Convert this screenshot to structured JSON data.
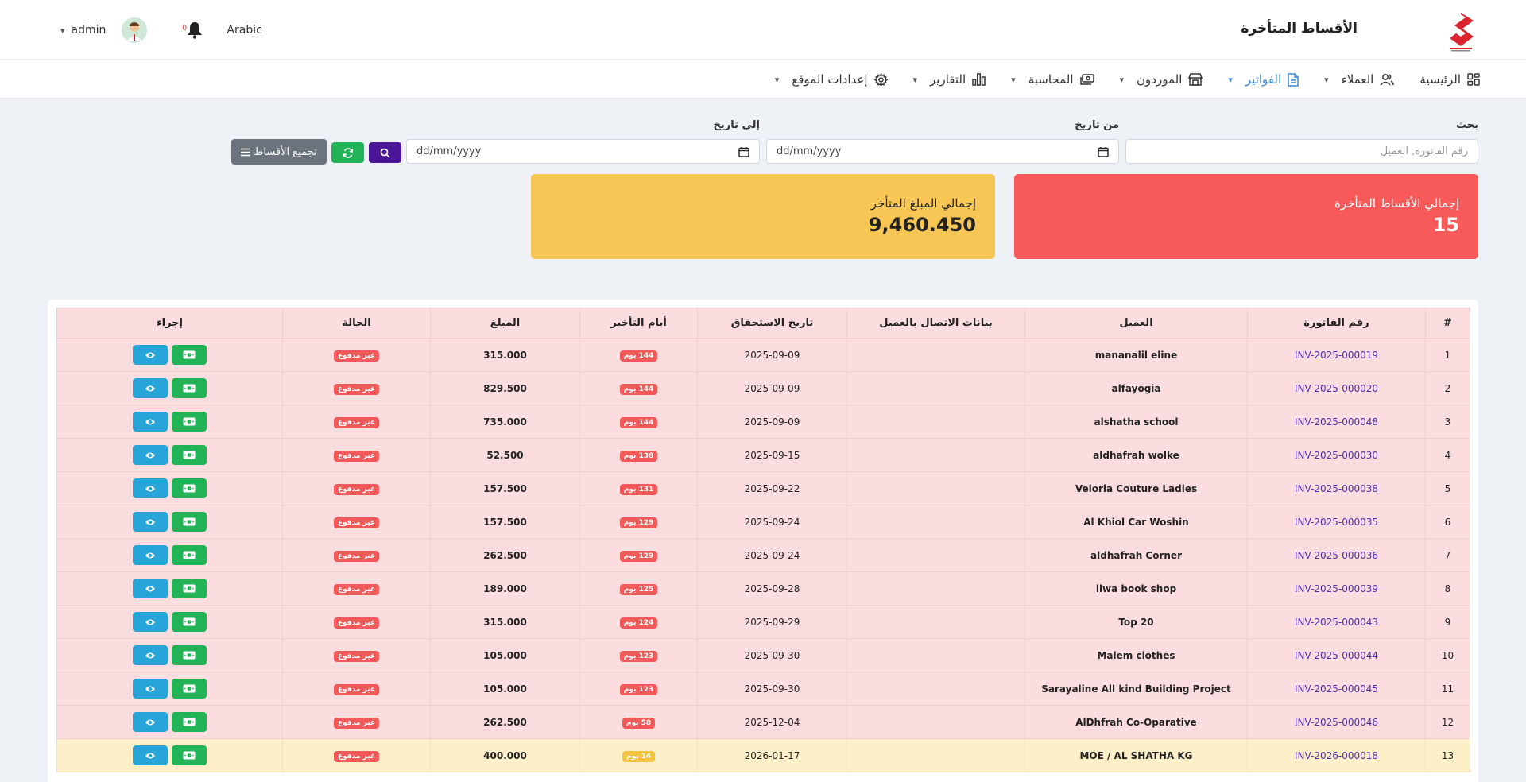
{
  "header": {
    "title": "الأقساط المتأخرة",
    "user": "admin",
    "language": "Arabic",
    "notifications": "0"
  },
  "nav": [
    {
      "label": "الرئيسية",
      "icon": "dashboard-icon",
      "dropdown": false,
      "active": false
    },
    {
      "label": "العملاء",
      "icon": "users-icon",
      "dropdown": true,
      "active": false
    },
    {
      "label": "الفواتير",
      "icon": "document-icon",
      "dropdown": true,
      "active": true
    },
    {
      "label": "الموردون",
      "icon": "store-icon",
      "dropdown": true,
      "active": false
    },
    {
      "label": "المحاسبة",
      "icon": "cash-icon",
      "dropdown": true,
      "active": false
    },
    {
      "label": "التقارير",
      "icon": "bar-chart-icon",
      "dropdown": true,
      "active": false
    },
    {
      "label": "إعدادات الموقع",
      "icon": "gear-icon",
      "dropdown": true,
      "active": false
    }
  ],
  "filters": {
    "search_label": "بحث",
    "search_placeholder": "رقم الفاتورة, العميل",
    "from_label": "من تاريخ",
    "to_label": "إلى تاريخ",
    "date_placeholder": "dd/mm/yyyy",
    "group_button": "تجميع الأقساط"
  },
  "cards": {
    "overdue_count_label": "إجمالي الأقساط المتأخرة",
    "overdue_count_value": "15",
    "overdue_amount_label": "إجمالي المبلغ المتأخر",
    "overdue_amount_value": "9,460.450"
  },
  "table": {
    "headers": [
      "#",
      "رقم الفاتورة",
      "العميل",
      "بيانات الاتصال بالعميل",
      "تاريخ الاستحقاق",
      "أيام التأخير",
      "المبلغ",
      "الحالة",
      "إجراء"
    ],
    "rows": [
      {
        "n": "1",
        "invoice": "INV-2025-000019",
        "client": "mananalil eline",
        "contact": "",
        "due": "2025-09-09",
        "days": "144 يوم",
        "amount": "315.000",
        "status": "غير مدفوع",
        "tone": "red"
      },
      {
        "n": "2",
        "invoice": "INV-2025-000020",
        "client": "alfayogia",
        "contact": "",
        "due": "2025-09-09",
        "days": "144 يوم",
        "amount": "829.500",
        "status": "غير مدفوع",
        "tone": "red"
      },
      {
        "n": "3",
        "invoice": "INV-2025-000048",
        "client": "alshatha school",
        "contact": "",
        "due": "2025-09-09",
        "days": "144 يوم",
        "amount": "735.000",
        "status": "غير مدفوع",
        "tone": "red"
      },
      {
        "n": "4",
        "invoice": "INV-2025-000030",
        "client": "aldhafrah wolke",
        "contact": "",
        "due": "2025-09-15",
        "days": "138 يوم",
        "amount": "52.500",
        "status": "غير مدفوع",
        "tone": "red"
      },
      {
        "n": "5",
        "invoice": "INV-2025-000038",
        "client": "Veloria Couture Ladies",
        "contact": "",
        "due": "2025-09-22",
        "days": "131 يوم",
        "amount": "157.500",
        "status": "غير مدفوع",
        "tone": "red"
      },
      {
        "n": "6",
        "invoice": "INV-2025-000035",
        "client": "Al Khiol Car Woshin",
        "contact": "",
        "due": "2025-09-24",
        "days": "129 يوم",
        "amount": "157.500",
        "status": "غير مدفوع",
        "tone": "red"
      },
      {
        "n": "7",
        "invoice": "INV-2025-000036",
        "client": "aldhafrah Corner",
        "contact": "",
        "due": "2025-09-24",
        "days": "129 يوم",
        "amount": "262.500",
        "status": "غير مدفوع",
        "tone": "red"
      },
      {
        "n": "8",
        "invoice": "INV-2025-000039",
        "client": "liwa book shop",
        "contact": "",
        "due": "2025-09-28",
        "days": "125 يوم",
        "amount": "189.000",
        "status": "غير مدفوع",
        "tone": "red"
      },
      {
        "n": "9",
        "invoice": "INV-2025-000043",
        "client": "Top 20",
        "contact": "",
        "due": "2025-09-29",
        "days": "124 يوم",
        "amount": "315.000",
        "status": "غير مدفوع",
        "tone": "red"
      },
      {
        "n": "10",
        "invoice": "INV-2025-000044",
        "client": "Malem clothes",
        "contact": "",
        "due": "2025-09-30",
        "days": "123 يوم",
        "amount": "105.000",
        "status": "غير مدفوع",
        "tone": "red"
      },
      {
        "n": "11",
        "invoice": "INV-2025-000045",
        "client": "Sarayaline All kind Building Project",
        "contact": "",
        "due": "2025-09-30",
        "days": "123 يوم",
        "amount": "105.000",
        "status": "غير مدفوع",
        "tone": "red"
      },
      {
        "n": "12",
        "invoice": "INV-2025-000046",
        "client": "AlDhfrah Co-Oparative",
        "contact": "",
        "due": "2025-12-04",
        "days": "58 يوم",
        "amount": "262.500",
        "status": "غير مدفوع",
        "tone": "red"
      },
      {
        "n": "13",
        "invoice": "INV-2026-000018",
        "client": "MOE / AL SHATHA KG",
        "contact": "",
        "due": "2026-01-17",
        "days": "14 يوم",
        "amount": "400.000",
        "status": "غير مدفوع",
        "tone": "yellow"
      }
    ]
  },
  "colors": {
    "accent": "#3a8ad6",
    "overdue_card": "#f85a5a",
    "amount_card": "#f7c654",
    "row_overdue": "#fbdcdf",
    "row_warning": "#fdf0c8",
    "search_button": "#4b1696",
    "success": "#22b357",
    "info": "#27a5d8"
  }
}
